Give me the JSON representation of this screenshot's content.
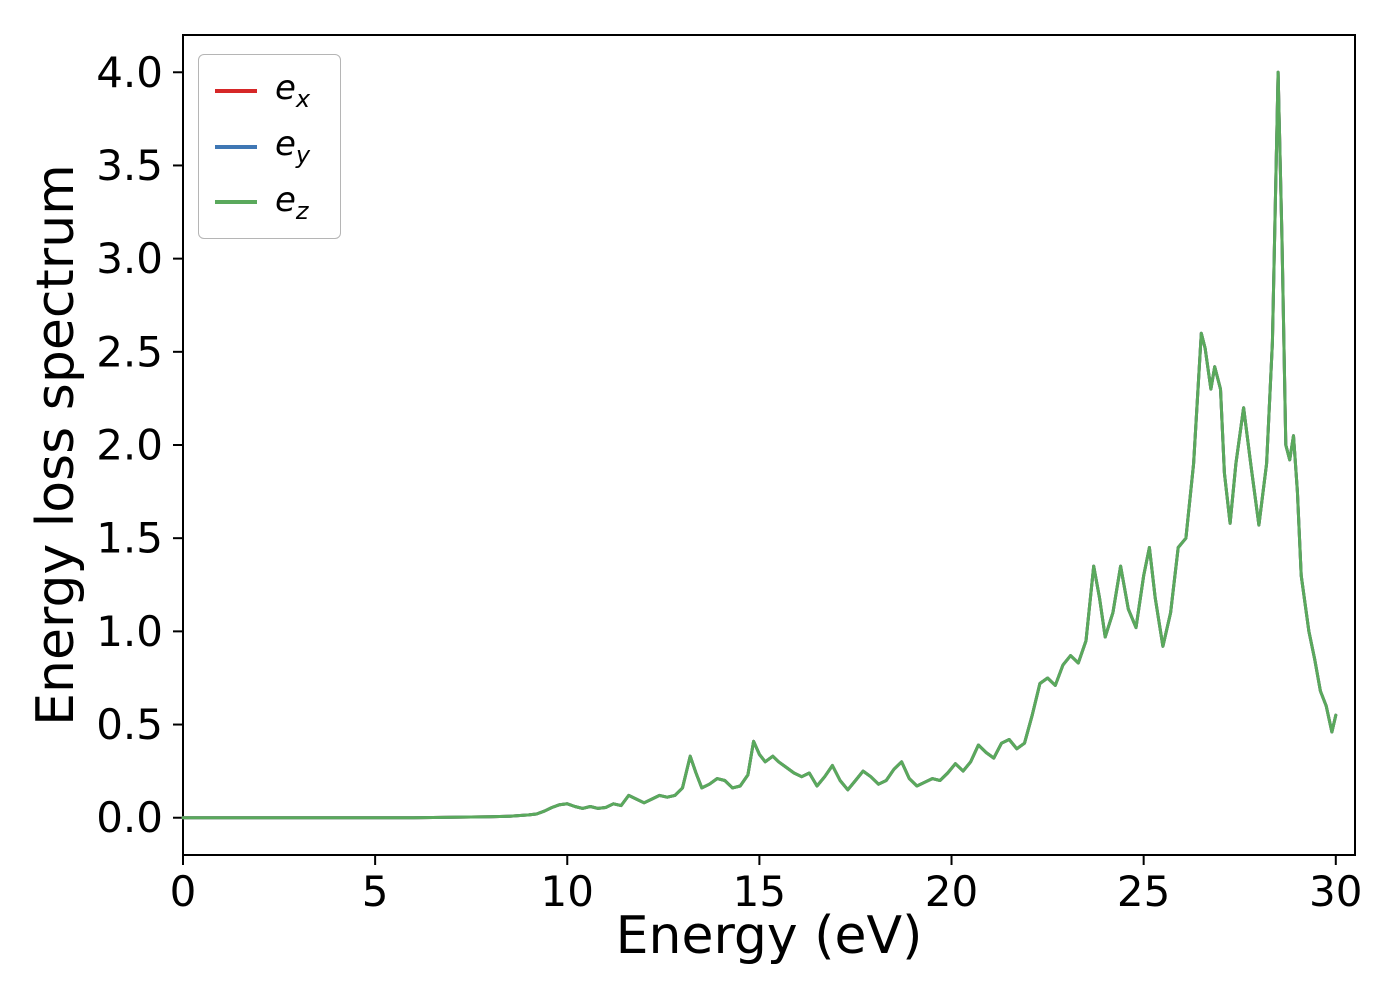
{
  "figure": {
    "background": "#ffffff"
  },
  "chart_data": {
    "type": "line",
    "title": "",
    "xlabel": "Energy (eV)",
    "ylabel": "Energy loss spectrum",
    "xlim": [
      0,
      30.5
    ],
    "ylim": [
      -0.2,
      4.2
    ],
    "grid": false,
    "legend_position": "upper left",
    "overlap_note": "The three series e_x, e_y, e_z coincide exactly; only e_z (green, drawn last) is visible over the whole range.",
    "xticks": [
      {
        "value": 0,
        "label": "0"
      },
      {
        "value": 5,
        "label": "5"
      },
      {
        "value": 10,
        "label": "10"
      },
      {
        "value": 15,
        "label": "15"
      },
      {
        "value": 20,
        "label": "20"
      },
      {
        "value": 25,
        "label": "25"
      },
      {
        "value": 30,
        "label": "30"
      }
    ],
    "yticks": [
      {
        "value": 0.0,
        "label": "0.0"
      },
      {
        "value": 0.5,
        "label": "0.5"
      },
      {
        "value": 1.0,
        "label": "1.0"
      },
      {
        "value": 1.5,
        "label": "1.5"
      },
      {
        "value": 2.0,
        "label": "2.0"
      },
      {
        "value": 2.5,
        "label": "2.5"
      },
      {
        "value": 3.0,
        "label": "3.0"
      },
      {
        "value": 3.5,
        "label": "3.5"
      },
      {
        "value": 4.0,
        "label": "4.0"
      }
    ],
    "legend": {
      "entries": [
        {
          "base": "e",
          "sub": "x",
          "color": "#d62728"
        },
        {
          "base": "e",
          "sub": "y",
          "color": "#3f77b4"
        },
        {
          "base": "e",
          "sub": "z",
          "color": "#5aa95c"
        }
      ]
    },
    "x": [
      0,
      2,
      4,
      6,
      7,
      8,
      8.5,
      9,
      9.2,
      9.4,
      9.6,
      9.8,
      10,
      10.2,
      10.4,
      10.6,
      10.8,
      11,
      11.2,
      11.4,
      11.6,
      11.8,
      12,
      12.2,
      12.4,
      12.6,
      12.8,
      13,
      13.2,
      13.35,
      13.5,
      13.7,
      13.9,
      14.1,
      14.3,
      14.5,
      14.7,
      14.85,
      15,
      15.15,
      15.35,
      15.5,
      15.7,
      15.9,
      16.1,
      16.3,
      16.5,
      16.7,
      16.9,
      17.1,
      17.3,
      17.5,
      17.7,
      17.9,
      18.1,
      18.3,
      18.5,
      18.7,
      18.9,
      19.1,
      19.3,
      19.5,
      19.7,
      19.9,
      20.1,
      20.3,
      20.5,
      20.7,
      20.9,
      21.1,
      21.3,
      21.5,
      21.7,
      21.9,
      22.1,
      22.3,
      22.5,
      22.7,
      22.9,
      23.1,
      23.3,
      23.5,
      23.7,
      23.85,
      24,
      24.2,
      24.4,
      24.6,
      24.8,
      25,
      25.15,
      25.3,
      25.5,
      25.7,
      25.9,
      26.1,
      26.3,
      26.5,
      26.6,
      26.75,
      26.85,
      27,
      27.1,
      27.25,
      27.4,
      27.6,
      27.8,
      28,
      28.2,
      28.35,
      28.5,
      28.6,
      28.7,
      28.8,
      28.9,
      29,
      29.1,
      29.3,
      29.45,
      29.6,
      29.75,
      29.9,
      30
    ],
    "series": [
      {
        "name": "e_x",
        "color": "#d62728",
        "values": [
          0,
          0,
          0,
          0,
          0.003,
          0.005,
          0.008,
          0.015,
          0.02,
          0.035,
          0.055,
          0.07,
          0.075,
          0.06,
          0.05,
          0.06,
          0.05,
          0.055,
          0.075,
          0.065,
          0.12,
          0.1,
          0.08,
          0.1,
          0.12,
          0.11,
          0.12,
          0.16,
          0.33,
          0.24,
          0.16,
          0.18,
          0.21,
          0.2,
          0.16,
          0.17,
          0.23,
          0.41,
          0.34,
          0.3,
          0.33,
          0.3,
          0.27,
          0.24,
          0.22,
          0.24,
          0.17,
          0.22,
          0.28,
          0.2,
          0.15,
          0.2,
          0.25,
          0.22,
          0.18,
          0.2,
          0.26,
          0.3,
          0.21,
          0.17,
          0.19,
          0.21,
          0.2,
          0.24,
          0.29,
          0.25,
          0.3,
          0.39,
          0.35,
          0.32,
          0.4,
          0.42,
          0.37,
          0.4,
          0.55,
          0.72,
          0.75,
          0.71,
          0.82,
          0.87,
          0.83,
          0.95,
          1.35,
          1.18,
          0.97,
          1.1,
          1.35,
          1.12,
          1.02,
          1.3,
          1.45,
          1.18,
          0.92,
          1.1,
          1.45,
          1.5,
          1.9,
          2.6,
          2.52,
          2.3,
          2.42,
          2.3,
          1.85,
          1.58,
          1.9,
          2.2,
          1.88,
          1.57,
          1.9,
          2.55,
          4.0,
          3.1,
          2.0,
          1.92,
          2.05,
          1.75,
          1.3,
          1.0,
          0.85,
          0.68,
          0.6,
          0.46,
          0.55
        ]
      },
      {
        "name": "e_y",
        "color": "#3f77b4",
        "values_same_as": "e_x"
      },
      {
        "name": "e_z",
        "color": "#5aa95c",
        "values_same_as": "e_x"
      }
    ]
  }
}
